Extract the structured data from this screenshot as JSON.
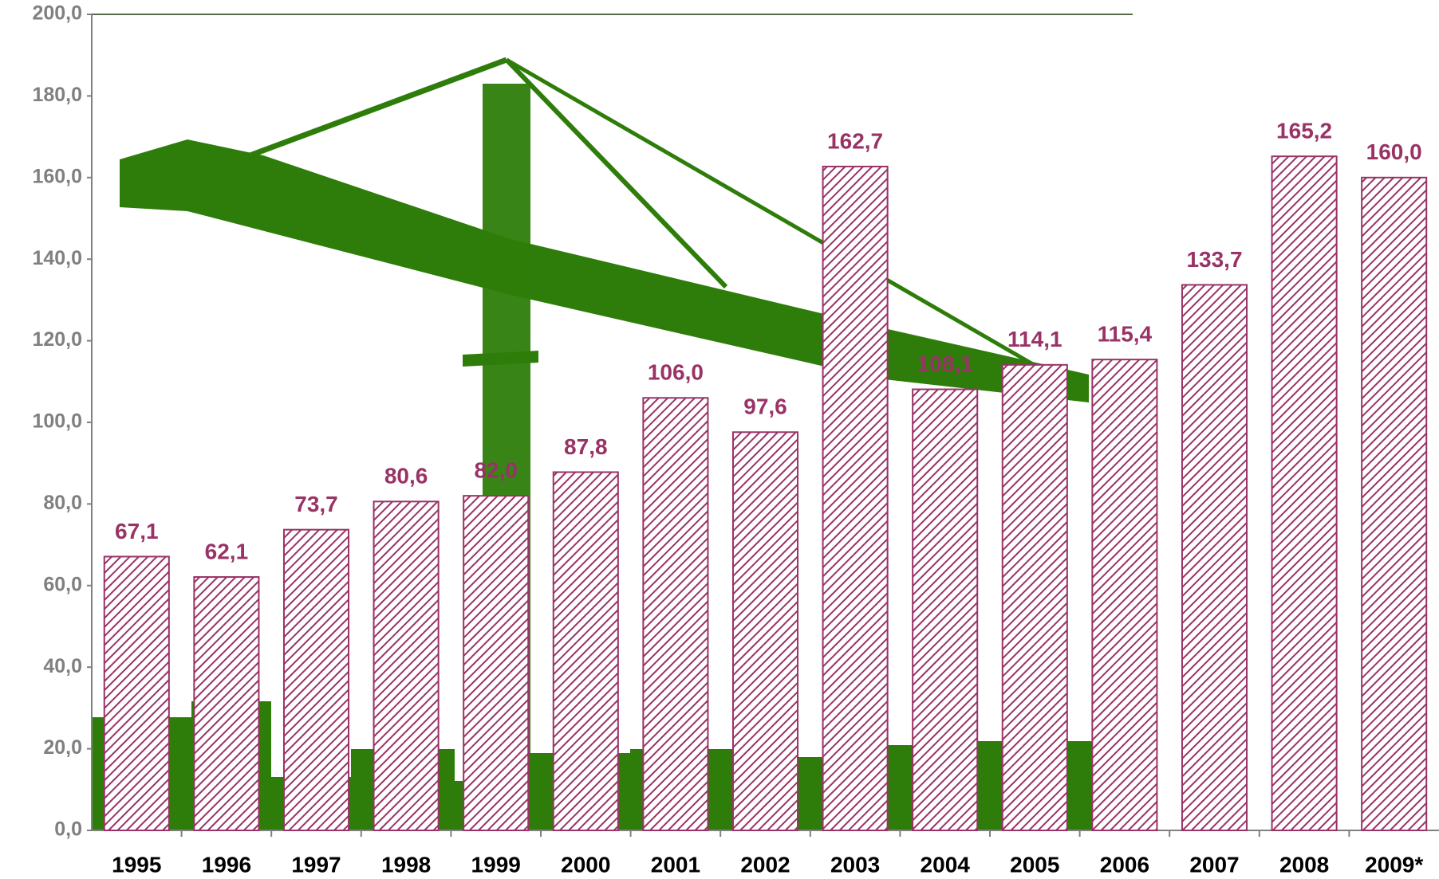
{
  "chart_data": {
    "type": "bar",
    "categories": [
      "1995",
      "1996",
      "1997",
      "1998",
      "1999",
      "2000",
      "2001",
      "2002",
      "2003",
      "2004",
      "2005",
      "2006",
      "2007",
      "2008",
      "2009*"
    ],
    "values": [
      67.1,
      62.1,
      73.7,
      80.6,
      82.0,
      87.8,
      106.0,
      97.6,
      162.7,
      108.1,
      114.1,
      115.4,
      133.7,
      165.2,
      160.0
    ],
    "value_labels": [
      "67,1",
      "62,1",
      "73,7",
      "80,6",
      "82,0",
      "87,8",
      "106,0",
      "97,6",
      "162,7",
      "108,1",
      "114,1",
      "115,4",
      "133,7",
      "165,2",
      "160,0"
    ],
    "color": "#993366",
    "ylim": [
      0,
      200
    ],
    "yticks": [
      {
        "value": 0,
        "label": "0,0"
      },
      {
        "value": 20,
        "label": "20,0"
      },
      {
        "value": 40,
        "label": "40,0"
      },
      {
        "value": 60,
        "label": "60,0"
      },
      {
        "value": 80,
        "label": "80,0"
      },
      {
        "value": 100,
        "label": "100,0"
      },
      {
        "value": 120,
        "label": "120,0"
      },
      {
        "value": 140,
        "label": "140,0"
      },
      {
        "value": 160,
        "label": "160,0"
      },
      {
        "value": 180,
        "label": "180,0"
      },
      {
        "value": 200,
        "label": "200,0"
      }
    ],
    "grid": false
  }
}
